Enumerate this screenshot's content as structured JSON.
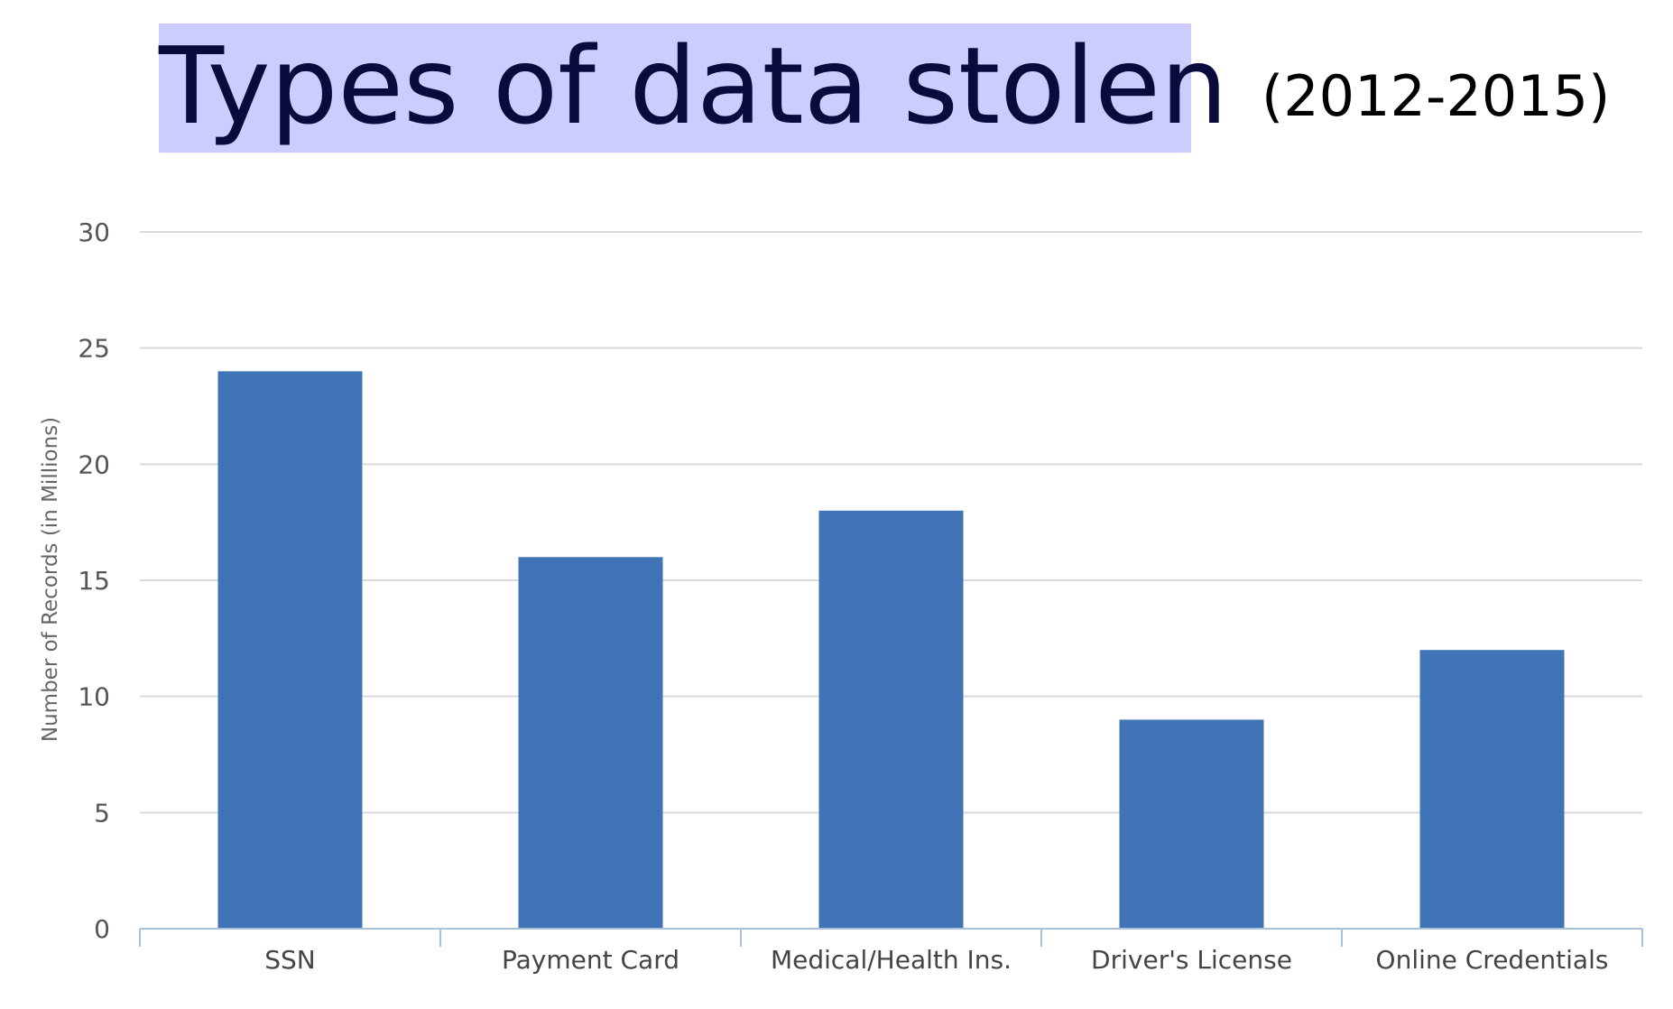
{
  "slide": {
    "title": "Types of data stolen",
    "subtitle": "(2012-2015)",
    "title_highlight_color": "#ccccff"
  },
  "chart_data": {
    "type": "bar",
    "categories": [
      "SSN",
      "Payment Card",
      "Medical/Health Ins.",
      "Driver's License",
      "Online Credentials"
    ],
    "values": [
      24,
      16,
      18,
      9,
      12
    ],
    "title": "Types of data stolen",
    "subtitle": "(2012-2015)",
    "xlabel": "",
    "ylabel": "Number of Records (in Millions)",
    "ylim": [
      0,
      30
    ],
    "yticks": [
      0,
      5,
      10,
      15,
      20,
      25,
      30
    ],
    "bar_color": "#4174b6",
    "grid": true,
    "legend": "none"
  }
}
